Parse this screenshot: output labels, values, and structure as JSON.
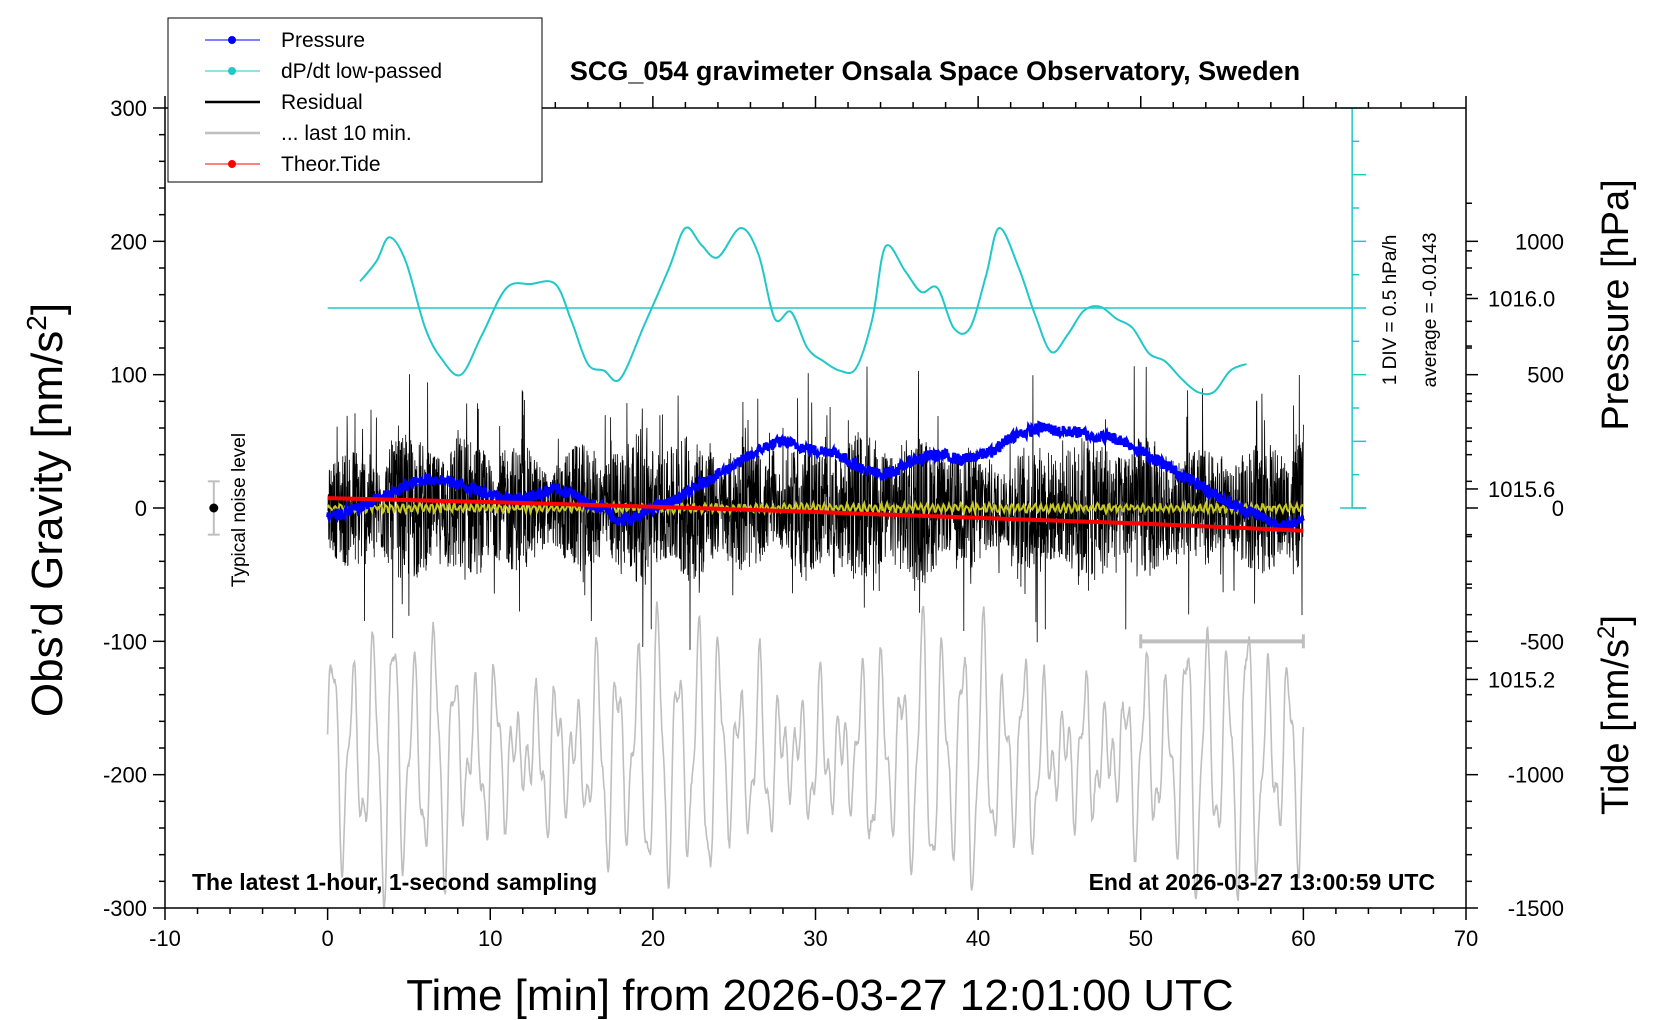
{
  "chart_data": {
    "type": "line",
    "title": "SCG_054 gravimeter Onsala Space Observatory, Sweden",
    "xlabel": "Time [min] from 2026-03-27 12:01:00 UTC",
    "ylabel": "Obs’d Gravity [nm/s",
    "ylabel_sup": "2",
    "ylabel_close": "]",
    "ylabel_right_pressure": "Pressure [hPa]",
    "ylabel_right_tide": "Tide [nm/s",
    "ylabel_right_tide_sup": "2",
    "ylabel_right_tide_close": "]",
    "xlim": [
      -10,
      70
    ],
    "ylim": [
      -300,
      300
    ],
    "pressure_ylim": [
      1014.72,
      1016.4
    ],
    "tide_ylim": [
      -1500,
      1500
    ],
    "x_ticks": [
      "-10",
      "0",
      "10",
      "20",
      "30",
      "40",
      "50",
      "60",
      "70"
    ],
    "y_ticks": [
      "-300",
      "-200",
      "-100",
      "0",
      "100",
      "200",
      "300"
    ],
    "pressure_ticks": [
      "1015.2",
      "1015.6",
      "1016.0"
    ],
    "tide_ticks": [
      "-1500",
      "-1000",
      "-500",
      "0",
      "500",
      "1000"
    ],
    "footer_left": "The latest 1-hour, 1-second sampling",
    "footer_right": "End at 2026-03-27 13:00:59 UTC",
    "noise_label": "Typical noise level",
    "dpdt_scale_label": "1 DIV = 0.5 hPa/h",
    "dpdt_average_label": "average = -0.0143",
    "legend": [
      {
        "name": "Pressure",
        "color": "#0000ff",
        "marker": true
      },
      {
        "name": "dP/dt low-passed",
        "color": "#20c8c8",
        "marker": true
      },
      {
        "name": "Residual",
        "color": "#000000",
        "marker": false
      },
      {
        "name": "... last 10 min.",
        "color": "#bfbfbf",
        "marker": false
      },
      {
        "name": "Theor.Tide",
        "color": "#ff0000",
        "marker": true
      }
    ],
    "colors": {
      "pressure": "#0000ff",
      "dpdt": "#20c8c8",
      "residual": "#000000",
      "residual_smooth": "#c8c820",
      "last10": "#bfbfbf",
      "tide": "#ff0000"
    },
    "series": [
      {
        "name": "Pressure",
        "axis": "pressure",
        "x": [
          0,
          1,
          2,
          3,
          4,
          5,
          6,
          7,
          8,
          9,
          10,
          11,
          12,
          13,
          14,
          15,
          16,
          17,
          18,
          19,
          20,
          21,
          22,
          23,
          24,
          25,
          26,
          27,
          28,
          29,
          30,
          31,
          32,
          33,
          34,
          35,
          36,
          37,
          38,
          39,
          40,
          41,
          42,
          43,
          44,
          45,
          46,
          47,
          48,
          49,
          50,
          51,
          52,
          53,
          54,
          55,
          56,
          57,
          58,
          59,
          60
        ],
        "y": [
          1015.54,
          1015.55,
          1015.56,
          1015.58,
          1015.59,
          1015.61,
          1015.62,
          1015.62,
          1015.61,
          1015.6,
          1015.59,
          1015.58,
          1015.58,
          1015.59,
          1015.6,
          1015.59,
          1015.57,
          1015.56,
          1015.53,
          1015.54,
          1015.56,
          1015.57,
          1015.59,
          1015.61,
          1015.63,
          1015.65,
          1015.67,
          1015.69,
          1015.7,
          1015.69,
          1015.68,
          1015.68,
          1015.66,
          1015.64,
          1015.63,
          1015.64,
          1015.66,
          1015.67,
          1015.67,
          1015.66,
          1015.67,
          1015.68,
          1015.71,
          1015.72,
          1015.73,
          1015.72,
          1015.72,
          1015.71,
          1015.71,
          1015.7,
          1015.68,
          1015.66,
          1015.64,
          1015.62,
          1015.6,
          1015.58,
          1015.56,
          1015.55,
          1015.53,
          1015.52,
          1015.54
        ]
      },
      {
        "name": "dP/dt low-passed",
        "axis": "gravity",
        "x": [
          2,
          3,
          3.8,
          4.8,
          6,
          7,
          8.2,
          9.5,
          11,
          12.5,
          14,
          15,
          16,
          17,
          18,
          19.5,
          21,
          22,
          23,
          24,
          25.4,
          26.5,
          27.5,
          28.5,
          29.5,
          30.5,
          31.5,
          32.5,
          33.5,
          34.3,
          35.5,
          36.5,
          37.5,
          38.5,
          39.5,
          40.5,
          41.3,
          42.5,
          43.5,
          44.5,
          45.5,
          46.5,
          47.5,
          48.5,
          49.5,
          50.5,
          51.5,
          52.5,
          53.5,
          54.5,
          55.5,
          56.5
        ],
        "y": [
          170,
          185,
          203,
          185,
          135,
          112,
          100,
          130,
          165,
          168,
          168,
          140,
          108,
          103,
          97,
          138,
          180,
          210,
          197,
          188,
          210,
          190,
          142,
          147,
          120,
          110,
          103,
          105,
          142,
          196,
          178,
          162,
          165,
          135,
          135,
          175,
          210,
          180,
          145,
          117,
          130,
          148,
          151,
          142,
          135,
          116,
          110,
          97,
          87,
          87,
          103,
          108
        ]
      },
      {
        "name": "Theor.Tide",
        "axis": "tide",
        "x": [
          0,
          10,
          20,
          30,
          40,
          50,
          60
        ],
        "y": [
          37,
          22,
          5,
          -15,
          -37,
          -58,
          -85
        ]
      }
    ]
  }
}
